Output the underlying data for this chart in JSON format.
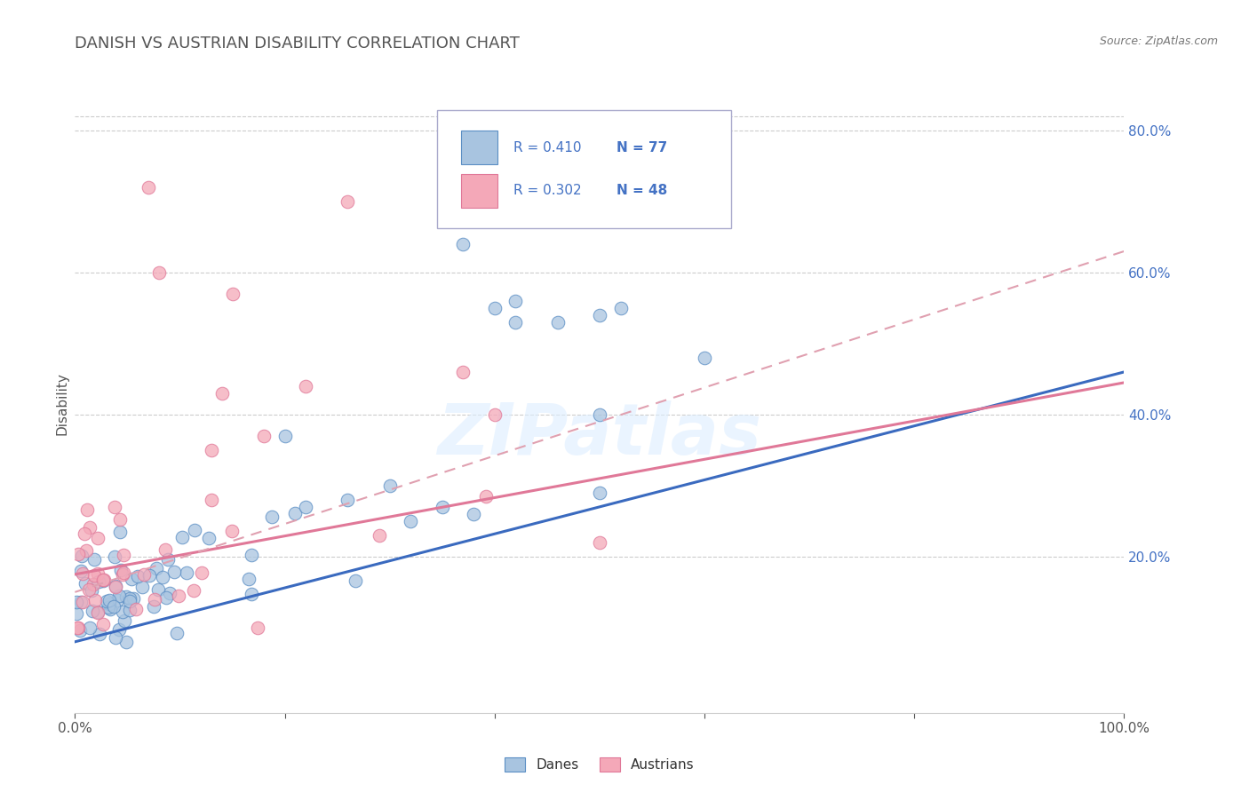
{
  "title": "DANISH VS AUSTRIAN DISABILITY CORRELATION CHART",
  "source_text": "Source: ZipAtlas.com",
  "ylabel": "Disability",
  "watermark": "ZIPatlas",
  "color_danes": "#a8c4e0",
  "color_austrians": "#f4a8b8",
  "edge_color_danes": "#5b8ec4",
  "edge_color_austrians": "#e07898",
  "line_color_danes": "#3a6abf",
  "line_color_austrians": "#e07898",
  "line_color_dashed": "#e0a0b0",
  "ytick_color": "#4472c4",
  "xtick_color": "#555555",
  "grid_color": "#cccccc",
  "title_color": "#555555",
  "legend_border_color": "#aaaacc",
  "legend_text_color": "#4472c4",
  "xlim": [
    0.0,
    1.0
  ],
  "ylim": [
    -0.02,
    0.85
  ],
  "danes_line_intercept": 0.08,
  "danes_line_slope": 0.38,
  "austrians_line_intercept": 0.175,
  "austrians_line_slope": 0.27,
  "dashed_line_intercept": 0.15,
  "dashed_line_slope": 0.48
}
